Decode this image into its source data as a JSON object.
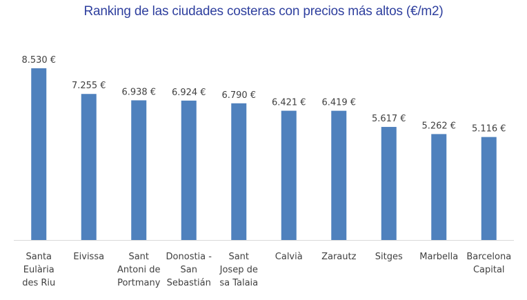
{
  "chart_data": {
    "type": "bar",
    "title": "Ranking de las ciudades costeras con precios más altos (€/m2)",
    "categories": [
      [
        "Santa",
        "Eulària",
        "des Riu"
      ],
      [
        "Eivissa"
      ],
      [
        "Sant",
        "Antoni de",
        "Portmany"
      ],
      [
        "Donostia -",
        "San",
        "Sebastián"
      ],
      [
        "Sant",
        "Josep de",
        "sa Talaia"
      ],
      [
        "Calvià"
      ],
      [
        "Zarautz"
      ],
      [
        "Sitges"
      ],
      [
        "Marbella"
      ],
      [
        "Barcelona",
        "Capital"
      ]
    ],
    "values": [
      8530,
      7255,
      6938,
      6924,
      6790,
      6421,
      6419,
      5617,
      5262,
      5116
    ],
    "value_labels": [
      "8.530 €",
      "7.255 €",
      "6.938 €",
      "6.924 €",
      "6.790 €",
      "6.421 €",
      "6.419 €",
      "5.617 €",
      "5.262 €",
      "5.116 €"
    ],
    "xlabel": "",
    "ylabel": "",
    "ylim": [
      0,
      8530
    ],
    "grid": false,
    "legend": "none",
    "bar_color": "#4f81bd",
    "axis_color": "#d9d9d9",
    "title_color": "#2e3f9e",
    "label_color": "#404040"
  }
}
